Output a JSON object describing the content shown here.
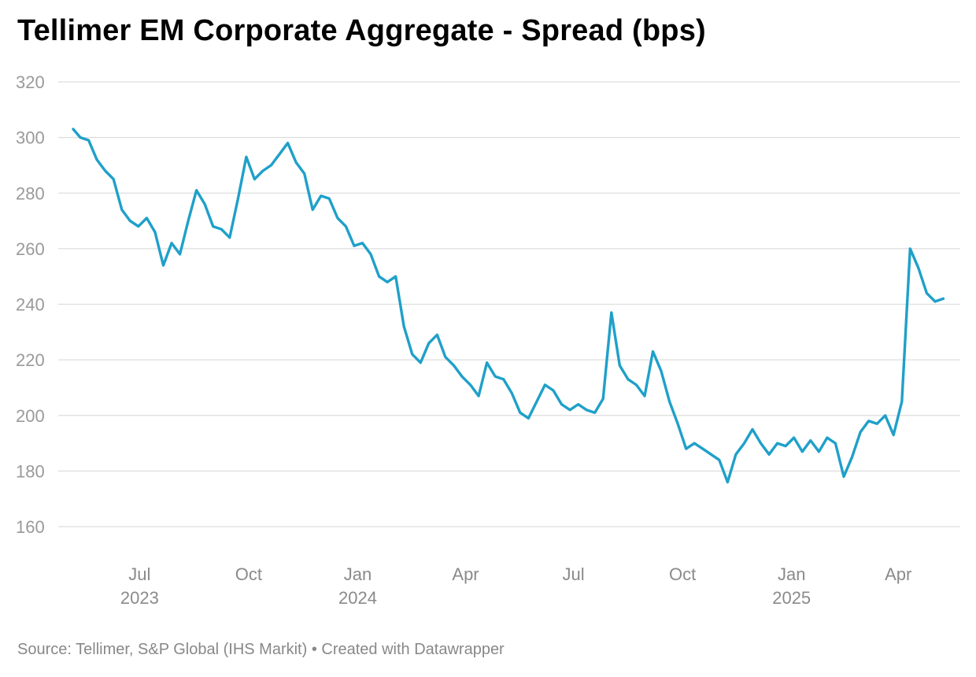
{
  "page": {
    "title": "Tellimer EM Corporate Aggregate - Spread (bps)",
    "source": "Source: Tellimer, S&P Global (IHS Markit) • Created with Datawrapper"
  },
  "chart_data": {
    "type": "line",
    "title": "Tellimer EM Corporate Aggregate - Spread (bps)",
    "xlabel": "",
    "ylabel": "",
    "ylim": [
      160,
      320
    ],
    "yticks": [
      320,
      300,
      280,
      260,
      240,
      220,
      200,
      180,
      160
    ],
    "x_range": [
      "2023-05-06",
      "2025-05-10"
    ],
    "grid": true,
    "legend": "none",
    "line_color": "#1fa0c9",
    "xticks": [
      {
        "date": "2023-07-01",
        "month": "Jul",
        "year": "2023"
      },
      {
        "date": "2023-10-01",
        "month": "Oct",
        "year": ""
      },
      {
        "date": "2024-01-01",
        "month": "Jan",
        "year": "2024"
      },
      {
        "date": "2024-04-01",
        "month": "Apr",
        "year": ""
      },
      {
        "date": "2024-07-01",
        "month": "Jul",
        "year": ""
      },
      {
        "date": "2024-10-01",
        "month": "Oct",
        "year": ""
      },
      {
        "date": "2025-01-01",
        "month": "Jan",
        "year": "2025"
      },
      {
        "date": "2025-04-01",
        "month": "Apr",
        "year": ""
      }
    ],
    "series": [
      {
        "x": [
          "2023-05-06",
          "2023-05-12",
          "2023-05-19",
          "2023-05-26",
          "2023-06-02",
          "2023-06-09",
          "2023-06-16",
          "2023-06-23",
          "2023-06-30",
          "2023-07-07",
          "2023-07-14",
          "2023-07-21",
          "2023-07-28",
          "2023-08-04",
          "2023-08-11",
          "2023-08-18",
          "2023-08-25",
          "2023-09-01",
          "2023-09-08",
          "2023-09-15",
          "2023-09-22",
          "2023-09-29",
          "2023-10-06",
          "2023-10-13",
          "2023-10-20",
          "2023-10-27",
          "2023-11-03",
          "2023-11-10",
          "2023-11-17",
          "2023-11-24",
          "2023-12-01",
          "2023-12-08",
          "2023-12-15",
          "2023-12-22",
          "2023-12-29",
          "2024-01-05",
          "2024-01-12",
          "2024-01-19",
          "2024-01-26",
          "2024-02-02",
          "2024-02-09",
          "2024-02-16",
          "2024-02-23",
          "2024-03-01",
          "2024-03-08",
          "2024-03-15",
          "2024-03-22",
          "2024-03-29",
          "2024-04-05",
          "2024-04-12",
          "2024-04-19",
          "2024-04-26",
          "2024-05-03",
          "2024-05-10",
          "2024-05-17",
          "2024-05-24",
          "2024-05-31",
          "2024-06-07",
          "2024-06-14",
          "2024-06-21",
          "2024-06-28",
          "2024-07-05",
          "2024-07-12",
          "2024-07-19",
          "2024-07-26",
          "2024-08-02",
          "2024-08-09",
          "2024-08-16",
          "2024-08-23",
          "2024-08-30",
          "2024-09-06",
          "2024-09-13",
          "2024-09-20",
          "2024-09-27",
          "2024-10-04",
          "2024-10-11",
          "2024-10-18",
          "2024-10-25",
          "2024-11-01",
          "2024-11-08",
          "2024-11-15",
          "2024-11-22",
          "2024-11-29",
          "2024-12-06",
          "2024-12-13",
          "2024-12-20",
          "2024-12-27",
          "2025-01-03",
          "2025-01-10",
          "2025-01-17",
          "2025-01-24",
          "2025-01-31",
          "2025-02-07",
          "2025-02-14",
          "2025-02-21",
          "2025-02-28",
          "2025-03-07",
          "2025-03-14",
          "2025-03-21",
          "2025-03-28",
          "2025-04-04",
          "2025-04-11",
          "2025-04-18",
          "2025-04-25",
          "2025-05-02",
          "2025-05-09"
        ],
        "values": [
          303,
          300,
          299,
          292,
          288,
          285,
          274,
          270,
          268,
          271,
          266,
          254,
          262,
          258,
          270,
          281,
          276,
          268,
          267,
          264,
          278,
          293,
          285,
          288,
          290,
          294,
          298,
          291,
          287,
          274,
          279,
          278,
          271,
          268,
          261,
          262,
          258,
          250,
          248,
          250,
          232,
          222,
          219,
          226,
          229,
          221,
          218,
          214,
          211,
          207,
          219,
          214,
          213,
          208,
          201,
          199,
          205,
          211,
          209,
          204,
          202,
          204,
          202,
          201,
          206,
          237,
          218,
          213,
          211,
          207,
          223,
          216,
          205,
          197,
          188,
          190,
          188,
          186,
          184,
          176,
          186,
          190,
          195,
          190,
          186,
          190,
          189,
          192,
          187,
          191,
          187,
          192,
          190,
          178,
          185,
          194,
          198,
          197,
          200,
          193,
          205,
          260,
          253,
          244,
          241,
          242
        ]
      }
    ]
  }
}
